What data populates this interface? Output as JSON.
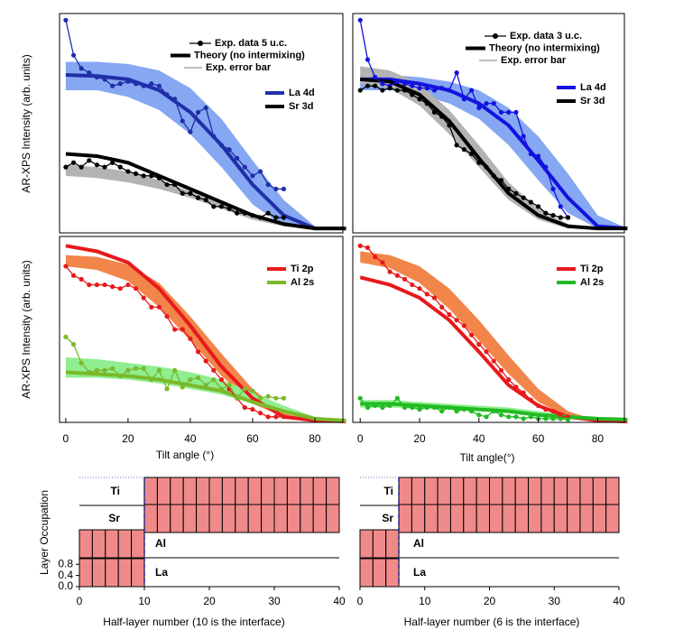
{
  "chart_data": [
    {
      "type": "line",
      "ylabel": "AR-XPS Intensity (arb. units)",
      "xlim": [
        -2,
        89
      ],
      "ylim": [
        0,
        100
      ],
      "legend_keys": [
        "Exp. data 5 u.c.",
        "Theory (no intermixing)",
        "Exp. error bar"
      ],
      "theory_x": [
        0,
        10,
        20,
        30,
        40,
        50,
        60,
        70,
        80,
        90
      ],
      "exp_x": [
        0,
        2.5,
        5,
        7.5,
        10,
        12.5,
        15,
        17.5,
        20,
        22.5,
        25,
        27.5,
        30,
        32.5,
        35,
        37.5,
        40,
        42.5,
        45,
        47.5,
        50,
        52.5,
        55,
        57.5,
        60,
        62.5,
        65,
        67.5,
        70
      ],
      "series": [
        {
          "name": "La 4d",
          "color": "#1f2fa8",
          "band_color": "#86a7f2",
          "values": [
            97,
            81,
            75,
            73,
            71,
            70,
            67,
            68,
            69,
            68,
            67,
            68,
            67,
            63,
            61,
            51,
            46,
            55,
            57,
            44,
            40,
            38,
            34,
            30,
            26,
            28,
            22,
            20,
            20
          ],
          "theory": [
            72,
            71.5,
            70,
            65,
            55,
            40,
            22,
            8,
            2,
            2
          ],
          "band_high": [
            78,
            78,
            77,
            74,
            66,
            52,
            33,
            15,
            3,
            2
          ],
          "band_low": [
            65,
            65,
            62,
            56,
            45,
            30,
            13,
            3,
            2,
            2
          ]
        },
        {
          "name": "Sr 3d",
          "color": "#000000",
          "band_color": "#b3b3b3",
          "values": [
            30,
            32,
            30,
            33,
            31,
            30,
            32,
            30,
            28,
            27,
            26,
            26,
            25,
            22,
            22,
            18,
            18,
            16,
            15,
            12,
            12,
            11,
            9,
            9,
            8,
            7,
            9,
            7,
            7
          ],
          "theory": [
            36,
            35,
            32,
            26,
            20,
            14,
            8,
            4,
            2,
            2
          ],
          "band_high": [
            31,
            30,
            28,
            24,
            19,
            13,
            7,
            3,
            2,
            2
          ],
          "band_low": [
            26,
            25,
            23,
            20,
            16,
            11,
            6,
            3,
            2,
            2
          ]
        }
      ]
    },
    {
      "type": "line",
      "xlim": [
        -2.5,
        89
      ],
      "ylim": [
        0,
        100
      ],
      "legend_keys": [
        "Exp. data 3 u.c.",
        "Theory (no intermixing)",
        "Exp. error bar"
      ],
      "theory_x": [
        0,
        10,
        20,
        30,
        40,
        50,
        60,
        70,
        80,
        90
      ],
      "exp_x": [
        0,
        2.5,
        5,
        7.5,
        10,
        12.5,
        15,
        17.5,
        20,
        22.5,
        25,
        27.5,
        30,
        32.5,
        35,
        37.5,
        40,
        42.5,
        45,
        47.5,
        50,
        52.5,
        55,
        57.5,
        60,
        62.5,
        65,
        67.5,
        70
      ],
      "series": [
        {
          "name": "La 4d",
          "color": "#1212e0",
          "band_color": "#86a7f2",
          "values": [
            97,
            79,
            71,
            68,
            67,
            69,
            68,
            67,
            66,
            66,
            65,
            66,
            65,
            73,
            61,
            65,
            57,
            59,
            59,
            55,
            55,
            55,
            44,
            36,
            35,
            30,
            20,
            12,
            7
          ],
          "theory": [
            70,
            70,
            68,
            65,
            59,
            49,
            33,
            16,
            3,
            2
          ],
          "band_high": [
            72,
            72,
            71,
            69,
            65,
            57,
            44,
            27,
            8,
            2
          ],
          "band_low": [
            65,
            65,
            63,
            59,
            52,
            40,
            24,
            9,
            2,
            2
          ]
        },
        {
          "name": "Sr 3d",
          "color": "#000000",
          "band_color": "#b3b3b3",
          "values": [
            65,
            67,
            67,
            65,
            66,
            65,
            65,
            63,
            61,
            59,
            55,
            53,
            49,
            40,
            38,
            36,
            32,
            30,
            26,
            24,
            20,
            18,
            16,
            14,
            12,
            9,
            8,
            7,
            7
          ],
          "theory": [
            70,
            69,
            63,
            51,
            34,
            18,
            8,
            3,
            2,
            2
          ],
          "band_high": [
            76,
            74,
            68,
            56,
            40,
            23,
            11,
            4,
            2,
            2
          ],
          "band_low": [
            68,
            66,
            58,
            45,
            30,
            15,
            6,
            2,
            2,
            2
          ]
        }
      ]
    },
    {
      "type": "line",
      "ylabel": "AR-XPS Intensity (arb. units)",
      "xlabel": "Tilt angle (°)",
      "xlim": [
        -2,
        89
      ],
      "ylim": [
        0,
        100
      ],
      "xticks": [
        0,
        20,
        40,
        60,
        80
      ],
      "theory_x": [
        0,
        10,
        20,
        30,
        40,
        50,
        60,
        70,
        80,
        90
      ],
      "exp_x": [
        0,
        2.5,
        5,
        7.5,
        10,
        12.5,
        15,
        17.5,
        20,
        22.5,
        25,
        27.5,
        30,
        32.5,
        35,
        37.5,
        40,
        42.5,
        45,
        47.5,
        50,
        52.5,
        55,
        57.5,
        60,
        62.5,
        65,
        67.5,
        70
      ],
      "series": [
        {
          "name": "Ti 2p",
          "color": "#e8191b",
          "band_color": "#f2864a",
          "values": [
            84,
            79,
            77,
            74,
            74,
            74,
            73,
            72,
            74,
            72,
            67,
            62,
            62,
            57,
            50,
            50,
            45,
            38,
            33,
            28,
            23,
            18,
            13,
            8,
            7,
            5,
            3,
            3,
            3
          ],
          "theory": [
            95,
            92,
            86,
            72,
            52,
            30,
            13,
            3,
            1,
            0.5
          ],
          "band_high": [
            90,
            89,
            85,
            75,
            57,
            37,
            18,
            5,
            1,
            0.5
          ],
          "band_low": [
            84,
            82,
            76,
            62,
            44,
            25,
            10,
            3,
            1,
            0.5
          ]
        },
        {
          "name": "Al 2s",
          "color": "#7ab92a",
          "band_color": "#90ee90",
          "values": [
            46,
            42,
            32,
            27,
            28,
            28,
            29,
            25,
            28,
            29,
            29,
            23,
            28,
            18,
            28,
            19,
            23,
            24,
            20,
            23,
            18,
            20,
            13,
            18,
            17,
            13,
            14,
            13,
            13
          ],
          "theory": [
            27,
            26,
            25,
            23,
            20,
            17,
            11,
            6,
            2,
            1
          ],
          "band_high": [
            35,
            34,
            32,
            30,
            27,
            23,
            16,
            9,
            3,
            1
          ],
          "band_low": [
            24,
            24,
            23,
            21,
            18,
            15,
            10,
            5,
            2,
            1
          ]
        }
      ]
    },
    {
      "type": "line",
      "xlabel": "Tilt angle(°)",
      "xlim": [
        -2.5,
        89
      ],
      "ylim": [
        0,
        100
      ],
      "xticks": [
        0,
        20,
        40,
        60,
        80
      ],
      "theory_x": [
        0,
        10,
        20,
        30,
        40,
        50,
        60,
        70,
        80,
        90
      ],
      "exp_x": [
        0,
        2.5,
        5,
        7.5,
        10,
        12.5,
        15,
        17.5,
        20,
        22.5,
        25,
        27.5,
        30,
        32.5,
        35,
        37.5,
        40,
        42.5,
        45,
        47.5,
        50,
        52.5,
        55,
        57.5,
        60,
        62.5,
        65,
        67.5,
        70
      ],
      "series": [
        {
          "name": "Ti 2p",
          "color": "#e8191b",
          "band_color": "#f2864a",
          "values": [
            95,
            94,
            89,
            86,
            81,
            79,
            77,
            74,
            72,
            69,
            67,
            62,
            58,
            55,
            52,
            47,
            42,
            38,
            33,
            28,
            23,
            19,
            16,
            12,
            9,
            7,
            6,
            3,
            3
          ],
          "theory": [
            78,
            74,
            67,
            55,
            38,
            20,
            9,
            3,
            1,
            0.5
          ],
          "band_high": [
            92,
            90,
            84,
            72,
            55,
            36,
            18,
            6,
            1,
            0.5
          ],
          "band_low": [
            86,
            83,
            75,
            61,
            44,
            26,
            11,
            3,
            1,
            0.5
          ]
        },
        {
          "name": "Al 2s",
          "color": "#22bb22",
          "band_color": "#90ee90",
          "values": [
            13,
            8,
            9,
            8,
            9,
            13,
            8,
            8,
            7,
            8,
            8,
            6,
            8,
            6,
            7,
            6,
            4,
            3,
            6,
            4,
            3,
            3,
            2,
            3,
            2,
            2,
            2,
            2,
            1.5
          ],
          "theory": [
            10,
            10,
            9,
            8,
            7,
            6,
            4,
            3,
            2,
            1.5
          ],
          "band_high": [
            12,
            12,
            11,
            10,
            9,
            8,
            6,
            4,
            2,
            1.5
          ],
          "band_low": [
            8,
            8,
            7.5,
            7,
            6,
            5,
            3,
            2,
            1,
            1
          ]
        }
      ]
    },
    {
      "type": "bar",
      "ylabel": "Layer Occupation",
      "xlabel": "Half-layer number (10 is the interface)",
      "xlim": [
        0,
        40
      ],
      "xticks": [
        0,
        10,
        20,
        30,
        40
      ],
      "ylim": [
        0,
        1
      ],
      "yticks": [
        {
          "value": 0,
          "label": "0.0"
        },
        {
          "value": 0.4,
          "label": "0.4"
        },
        {
          "value": 0.8,
          "label": "0.8"
        }
      ],
      "interface": 10,
      "color": "#f08a8a",
      "series": [
        {
          "name": "Ti",
          "x": [
            11,
            13,
            15,
            17,
            19,
            21,
            23,
            25,
            27,
            29,
            31,
            33,
            35,
            37,
            39
          ],
          "values": [
            1,
            1,
            1,
            1,
            1,
            1,
            1,
            1,
            1,
            1,
            1,
            1,
            1,
            1,
            1
          ]
        },
        {
          "name": "Sr",
          "x": [
            11,
            13,
            15,
            17,
            19,
            21,
            23,
            25,
            27,
            29,
            31,
            33,
            35,
            37,
            39
          ],
          "values": [
            1,
            1,
            1,
            1,
            1,
            1,
            1,
            1,
            1,
            1,
            1,
            1,
            1,
            1,
            1
          ]
        },
        {
          "name": "Al",
          "x": [
            1,
            3,
            5,
            7,
            9
          ],
          "values": [
            1,
            1,
            1,
            1,
            1
          ]
        },
        {
          "name": "La",
          "x": [
            1,
            3,
            5,
            7,
            9
          ],
          "values": [
            1,
            1,
            1,
            1,
            1
          ]
        }
      ]
    },
    {
      "type": "bar",
      "xlabel": "Half-layer number (6 is the interface)",
      "xlim": [
        0,
        40
      ],
      "xticks": [
        0,
        10,
        20,
        30,
        40
      ],
      "ylim": [
        0,
        1
      ],
      "interface": 6,
      "color": "#f08a8a",
      "series": [
        {
          "name": "Ti",
          "x": [
            7,
            9,
            11,
            13,
            15,
            17,
            19,
            21,
            23,
            25,
            27,
            29,
            31,
            33,
            35,
            37,
            39
          ],
          "values": [
            1,
            1,
            1,
            1,
            1,
            1,
            1,
            1,
            1,
            1,
            1,
            1,
            1,
            1,
            1,
            1,
            1
          ]
        },
        {
          "name": "Sr",
          "x": [
            7,
            9,
            11,
            13,
            15,
            17,
            19,
            21,
            23,
            25,
            27,
            29,
            31,
            33,
            35,
            37,
            39
          ],
          "values": [
            1,
            1,
            1,
            1,
            1,
            1,
            1,
            1,
            1,
            1,
            1,
            1,
            1,
            1,
            1,
            1,
            1
          ]
        },
        {
          "name": "Al",
          "x": [
            1,
            3,
            5
          ],
          "values": [
            1,
            1,
            1
          ]
        },
        {
          "name": "La",
          "x": [
            1,
            3,
            5
          ],
          "values": [
            1,
            1,
            1
          ]
        }
      ]
    }
  ]
}
